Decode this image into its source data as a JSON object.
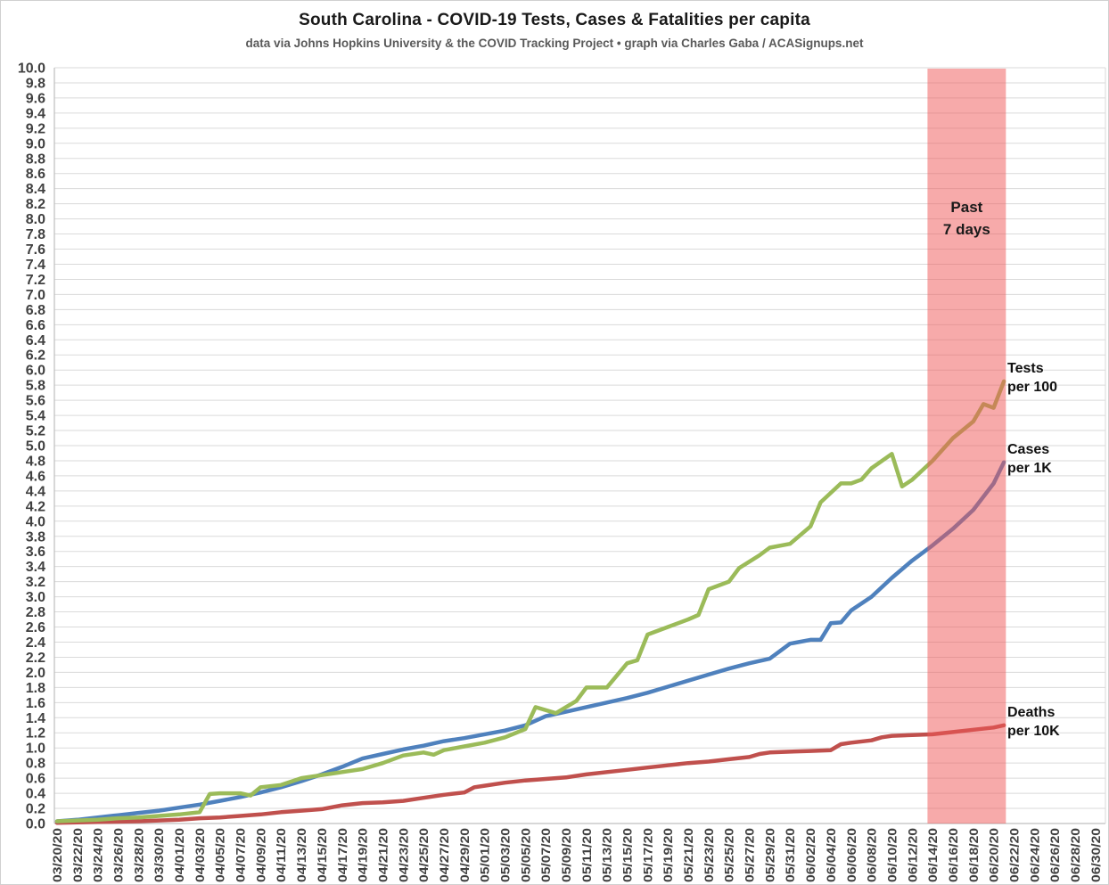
{
  "header": {
    "title": "South Carolina - COVID-19 Tests, Cases & Fatalities per capita",
    "subtitle": "data via Johns Hopkins University & the COVID Tracking Project • graph via Charles Gaba / ACASignups.net"
  },
  "colors": {
    "tests_line": "#9BBB59",
    "cases_line": "#4F81BD",
    "deaths_line": "#C0504D",
    "band_fill": "#F05555",
    "gridline": "#DADADA",
    "axis_line": "#BFBFBF",
    "tick_text": "#404040",
    "title_text": "#1A1A1A",
    "subtitle_text": "#595959"
  },
  "chart_data": {
    "type": "line",
    "title": "South Carolina - COVID-19 Tests, Cases & Fatalities per capita",
    "subtitle": "data via Johns Hopkins University & the COVID Tracking Project • graph via Charles Gaba / ACASignups.net",
    "grid": "horizontal-only",
    "y_axis": {
      "min": 0.0,
      "max": 10.0,
      "step": 0.2,
      "tick_format": "one-decimal"
    },
    "x_axis": {
      "labels": [
        "03/20/20",
        "03/22/20",
        "03/24/20",
        "03/26/20",
        "03/28/20",
        "03/30/20",
        "04/01/20",
        "04/03/20",
        "04/05/20",
        "04/07/20",
        "04/09/20",
        "04/11/20",
        "04/13/20",
        "04/15/20",
        "04/17/20",
        "04/19/20",
        "04/21/20",
        "04/23/20",
        "04/25/20",
        "04/27/20",
        "04/29/20",
        "05/01/20",
        "05/03/20",
        "05/05/20",
        "05/07/20",
        "05/09/20",
        "05/11/20",
        "05/13/20",
        "05/15/20",
        "05/17/20",
        "05/19/20",
        "05/21/20",
        "05/23/20",
        "05/25/20",
        "05/27/20",
        "05/29/20",
        "05/31/20",
        "06/02/20",
        "06/04/20",
        "06/06/20",
        "06/08/20",
        "06/10/20",
        "06/12/20",
        "06/14/20",
        "06/16/20",
        "06/18/20",
        "06/20/20",
        "06/22/20",
        "06/24/20",
        "06/26/20",
        "06/28/20",
        "06/30/20"
      ],
      "days_per_label": 2
    },
    "band": {
      "label_lines": [
        "Past",
        "7 days"
      ],
      "start_date": "06/14/20",
      "end_date": "06/21/20",
      "start_day": 85.5,
      "end_day": 93.2,
      "color": "#F05555",
      "opacity": 0.5
    },
    "series": [
      {
        "key": "deaths",
        "name": "Deaths per 10K",
        "label_lines": [
          "Deaths",
          "per 10K"
        ],
        "color": "#C0504D",
        "points": [
          [
            0,
            0.01
          ],
          [
            4,
            0.02
          ],
          [
            8,
            0.03
          ],
          [
            10,
            0.04
          ],
          [
            12,
            0.05
          ],
          [
            14,
            0.07
          ],
          [
            16,
            0.08
          ],
          [
            18,
            0.1
          ],
          [
            20,
            0.12
          ],
          [
            22,
            0.15
          ],
          [
            24,
            0.17
          ],
          [
            26,
            0.19
          ],
          [
            28,
            0.24
          ],
          [
            30,
            0.27
          ],
          [
            32,
            0.28
          ],
          [
            34,
            0.3
          ],
          [
            36,
            0.34
          ],
          [
            38,
            0.38
          ],
          [
            40,
            0.41
          ],
          [
            41,
            0.48
          ],
          [
            42,
            0.5
          ],
          [
            44,
            0.54
          ],
          [
            46,
            0.57
          ],
          [
            48,
            0.59
          ],
          [
            50,
            0.61
          ],
          [
            52,
            0.65
          ],
          [
            54,
            0.68
          ],
          [
            56,
            0.71
          ],
          [
            58,
            0.74
          ],
          [
            60,
            0.77
          ],
          [
            62,
            0.8
          ],
          [
            64,
            0.82
          ],
          [
            66,
            0.85
          ],
          [
            68,
            0.88
          ],
          [
            69,
            0.92
          ],
          [
            70,
            0.94
          ],
          [
            72,
            0.95
          ],
          [
            74,
            0.96
          ],
          [
            76,
            0.97
          ],
          [
            77,
            1.05
          ],
          [
            78,
            1.07
          ],
          [
            80,
            1.1
          ],
          [
            81,
            1.14
          ],
          [
            82,
            1.16
          ],
          [
            84,
            1.17
          ],
          [
            86,
            1.18
          ],
          [
            88,
            1.21
          ],
          [
            90,
            1.24
          ],
          [
            92,
            1.27
          ],
          [
            93,
            1.3
          ]
        ]
      },
      {
        "key": "cases",
        "name": "Cases per 1K",
        "label_lines": [
          "Cases",
          "per 1K"
        ],
        "color": "#4F81BD",
        "points": [
          [
            0,
            0.03
          ],
          [
            2,
            0.05
          ],
          [
            4,
            0.08
          ],
          [
            6,
            0.11
          ],
          [
            8,
            0.14
          ],
          [
            10,
            0.17
          ],
          [
            12,
            0.21
          ],
          [
            14,
            0.25
          ],
          [
            16,
            0.3
          ],
          [
            18,
            0.35
          ],
          [
            20,
            0.41
          ],
          [
            22,
            0.48
          ],
          [
            24,
            0.56
          ],
          [
            26,
            0.65
          ],
          [
            28,
            0.75
          ],
          [
            30,
            0.86
          ],
          [
            32,
            0.92
          ],
          [
            34,
            0.98
          ],
          [
            36,
            1.03
          ],
          [
            38,
            1.09
          ],
          [
            40,
            1.13
          ],
          [
            42,
            1.18
          ],
          [
            44,
            1.23
          ],
          [
            46,
            1.3
          ],
          [
            48,
            1.42
          ],
          [
            50,
            1.48
          ],
          [
            52,
            1.54
          ],
          [
            54,
            1.6
          ],
          [
            56,
            1.66
          ],
          [
            58,
            1.73
          ],
          [
            60,
            1.81
          ],
          [
            62,
            1.89
          ],
          [
            64,
            1.97
          ],
          [
            66,
            2.05
          ],
          [
            68,
            2.12
          ],
          [
            70,
            2.18
          ],
          [
            72,
            2.38
          ],
          [
            74,
            2.43
          ],
          [
            75,
            2.43
          ],
          [
            76,
            2.65
          ],
          [
            77,
            2.66
          ],
          [
            78,
            2.82
          ],
          [
            80,
            3.0
          ],
          [
            82,
            3.25
          ],
          [
            84,
            3.48
          ],
          [
            86,
            3.68
          ],
          [
            88,
            3.9
          ],
          [
            90,
            4.15
          ],
          [
            92,
            4.5
          ],
          [
            93,
            4.78
          ]
        ]
      },
      {
        "key": "tests",
        "name": "Tests per 100",
        "label_lines": [
          "Tests",
          "per 100"
        ],
        "color": "#9BBB59",
        "points": [
          [
            0,
            0.03
          ],
          [
            2,
            0.04
          ],
          [
            4,
            0.05
          ],
          [
            6,
            0.07
          ],
          [
            8,
            0.08
          ],
          [
            10,
            0.1
          ],
          [
            12,
            0.12
          ],
          [
            14,
            0.15
          ],
          [
            15,
            0.39
          ],
          [
            16,
            0.4
          ],
          [
            18,
            0.4
          ],
          [
            19,
            0.37
          ],
          [
            20,
            0.48
          ],
          [
            22,
            0.51
          ],
          [
            24,
            0.6
          ],
          [
            26,
            0.64
          ],
          [
            28,
            0.68
          ],
          [
            30,
            0.72
          ],
          [
            32,
            0.8
          ],
          [
            34,
            0.9
          ],
          [
            36,
            0.94
          ],
          [
            37,
            0.91
          ],
          [
            38,
            0.97
          ],
          [
            40,
            1.02
          ],
          [
            42,
            1.07
          ],
          [
            44,
            1.14
          ],
          [
            46,
            1.25
          ],
          [
            47,
            1.54
          ],
          [
            49,
            1.46
          ],
          [
            51,
            1.62
          ],
          [
            52,
            1.8
          ],
          [
            54,
            1.8
          ],
          [
            56,
            2.12
          ],
          [
            57,
            2.16
          ],
          [
            58,
            2.5
          ],
          [
            60,
            2.6
          ],
          [
            62,
            2.7
          ],
          [
            63,
            2.76
          ],
          [
            64,
            3.1
          ],
          [
            66,
            3.2
          ],
          [
            67,
            3.38
          ],
          [
            69,
            3.55
          ],
          [
            70,
            3.65
          ],
          [
            72,
            3.7
          ],
          [
            74,
            3.93
          ],
          [
            75,
            4.25
          ],
          [
            77,
            4.5
          ],
          [
            78,
            4.5
          ],
          [
            79,
            4.55
          ],
          [
            80,
            4.7
          ],
          [
            82,
            4.89
          ],
          [
            83,
            4.46
          ],
          [
            84,
            4.55
          ],
          [
            86,
            4.8
          ],
          [
            88,
            5.1
          ],
          [
            90,
            5.32
          ],
          [
            91,
            5.55
          ],
          [
            92,
            5.5
          ],
          [
            93,
            5.85
          ]
        ]
      }
    ],
    "legend_position": "end-of-line-labels"
  }
}
